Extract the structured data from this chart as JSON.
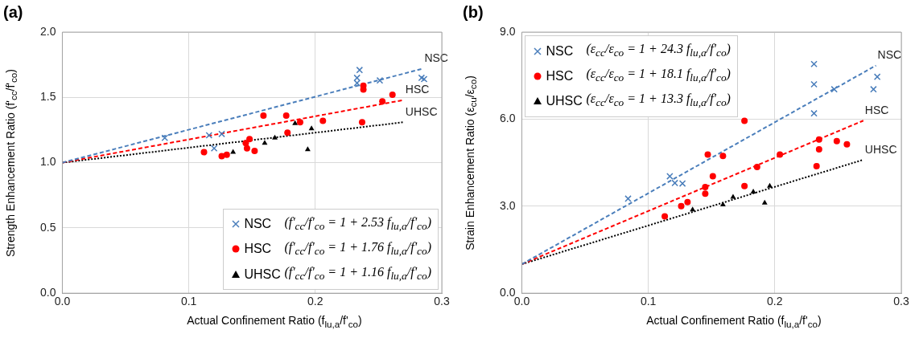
{
  "chart_data": [
    {
      "type": "scatter",
      "title": "(a)",
      "xlabel": "Actual Confinement Ratio (f$_{lu,a}$/f'$_{co}$)",
      "ylabel": "Strength Enhancement Ratio (f'$_{cc}$/f'$_{co}$)",
      "xlim": [
        0,
        0.3
      ],
      "ylim": [
        0,
        2
      ],
      "xticks": [
        {
          "value": 0,
          "label": "0.0"
        },
        {
          "value": 0.1,
          "label": "0.1"
        },
        {
          "value": 0.2,
          "label": "0.2"
        },
        {
          "value": 0.3,
          "label": "0.3"
        }
      ],
      "yticks": [
        {
          "value": 0,
          "label": "0.0"
        },
        {
          "value": 0.5,
          "label": "0.5"
        },
        {
          "value": 1,
          "label": "1.0"
        },
        {
          "value": 1.5,
          "label": "1.5"
        },
        {
          "value": 2,
          "label": "2.0"
        }
      ],
      "grid": true,
      "legend": "bottom right",
      "series": [
        {
          "name": "NSC",
          "type": "scatter",
          "marker": "cross",
          "color": "#4a7ebb",
          "x": [
            0.081,
            0.116,
            0.126,
            0.12,
            0.235,
            0.233,
            0.233,
            0.251,
            0.284,
            0.286
          ],
          "values": [
            1.19,
            1.21,
            1.22,
            1.11,
            1.71,
            1.65,
            1.61,
            1.63,
            1.65,
            1.64
          ]
        },
        {
          "name": "HSC",
          "type": "scatter",
          "marker": "circle",
          "color": "#ff0000",
          "x": [
            0.112,
            0.126,
            0.13,
            0.145,
            0.148,
            0.146,
            0.152,
            0.159,
            0.177,
            0.178,
            0.188,
            0.206,
            0.237,
            0.238,
            0.238,
            0.253,
            0.261
          ],
          "values": [
            1.08,
            1.05,
            1.06,
            1.15,
            1.18,
            1.11,
            1.09,
            1.36,
            1.36,
            1.23,
            1.31,
            1.32,
            1.31,
            1.59,
            1.56,
            1.47,
            1.52
          ]
        },
        {
          "name": "UHSC",
          "type": "scatter",
          "marker": "triangle",
          "color": "#000000",
          "x": [
            0.135,
            0.16,
            0.168,
            0.184,
            0.197,
            0.194
          ],
          "values": [
            1.08,
            1.15,
            1.19,
            1.3,
            1.26,
            1.1
          ]
        },
        {
          "name": "(f'$_{cc}$/f'$_{co}$ = 1 + 2.53 f$_{lu,a}$/f'$_{co}$)",
          "type": "line",
          "line_style": "dashed",
          "color": "#4a7ebb",
          "x": [
            0,
            0.285
          ],
          "values": [
            1,
            1.72
          ]
        },
        {
          "name": "(f'$_{cc}$/f'$_{co}$ = 1 + 1.76 f$_{lu,a}$/f'$_{co}$)",
          "type": "line",
          "line_style": "dashed",
          "color": "#ff0000",
          "x": [
            0,
            0.27
          ],
          "values": [
            1,
            1.48
          ]
        },
        {
          "name": "(f'$_{cc}$/f'$_{co}$ = 1 + 1.16 f$_{lu,a}$/f'$_{co}$)",
          "type": "line",
          "line_style": "dotted",
          "color": "#000000",
          "x": [
            0,
            0.27
          ],
          "values": [
            1,
            1.31
          ]
        }
      ],
      "annotations": [
        "NSC",
        "HSC",
        "UHSC"
      ]
    },
    {
      "type": "scatter",
      "title": "(b)",
      "xlabel": "Actual Confinement Ratio (f$_{lu,a}$/f'$_{co}$)",
      "ylabel": "Strain Enhancement Ratio (ε$_{cu}$/ε$_{co}$)",
      "xlim": [
        0,
        0.3
      ],
      "ylim": [
        0,
        9
      ],
      "xticks": [
        {
          "value": 0,
          "label": "0.0"
        },
        {
          "value": 0.1,
          "label": "0.1"
        },
        {
          "value": 0.2,
          "label": "0.2"
        },
        {
          "value": 0.3,
          "label": "0.3"
        }
      ],
      "yticks": [
        {
          "value": 0,
          "label": "0.0"
        },
        {
          "value": 3,
          "label": "3.0"
        },
        {
          "value": 6,
          "label": "6.0"
        },
        {
          "value": 9,
          "label": "9.0"
        }
      ],
      "grid": true,
      "legend": "top left",
      "series": [
        {
          "name": "NSC",
          "type": "scatter",
          "marker": "cross",
          "color": "#4a7ebb",
          "x": [
            0.084,
            0.117,
            0.121,
            0.127,
            0.231,
            0.231,
            0.231,
            0.247,
            0.281,
            0.278
          ],
          "values": [
            3.26,
            4.03,
            3.8,
            3.78,
            7.9,
            7.2,
            6.2,
            7.03,
            7.46,
            7.03
          ]
        },
        {
          "name": "HSC",
          "type": "scatter",
          "marker": "circle",
          "color": "#ff0000",
          "x": [
            0.113,
            0.126,
            0.131,
            0.145,
            0.145,
            0.147,
            0.151,
            0.159,
            0.176,
            0.176,
            0.186,
            0.204,
            0.233,
            0.235,
            0.235,
            0.249,
            0.257
          ],
          "values": [
            2.65,
            3,
            3.14,
            3.66,
            3.43,
            4.78,
            4.03,
            4.73,
            5.94,
            3.69,
            4.35,
            4.78,
            4.38,
            4.96,
            5.3,
            5.24,
            5.13
          ]
        },
        {
          "name": "UHSC",
          "type": "scatter",
          "marker": "triangle",
          "color": "#000000",
          "x": [
            0.135,
            0.159,
            0.167,
            0.183,
            0.196,
            0.192
          ],
          "values": [
            2.88,
            3.05,
            3.31,
            3.49,
            3.69,
            3.11
          ]
        },
        {
          "name": "(ε$_{cc}$/ε$_{co}$ = 1 + 24.3 f$_{lu,a}$/f'$_{co}$)",
          "type": "line",
          "line_style": "dashed",
          "color": "#4a7ebb",
          "x": [
            0,
            0.28
          ],
          "values": [
            1,
            7.85
          ]
        },
        {
          "name": "(ε$_{cc}$/ε$_{co}$ = 1 + 18.1 f$_{lu,a}$/f'$_{co}$)",
          "type": "line",
          "line_style": "dashed",
          "color": "#ff0000",
          "x": [
            0,
            0.27
          ],
          "values": [
            1,
            5.95
          ]
        },
        {
          "name": "(ε$_{cc}$/ε$_{co}$ = 1 + 13.3 f$_{lu,a}$/f'$_{co}$)",
          "type": "line",
          "line_style": "dotted",
          "color": "#000000",
          "x": [
            0,
            0.27
          ],
          "values": [
            1,
            4.6
          ]
        }
      ],
      "annotations": [
        "NSC",
        "HSC",
        "UHSC"
      ]
    }
  ]
}
